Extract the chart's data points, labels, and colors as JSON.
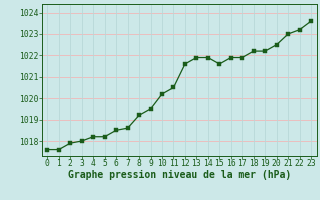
{
  "x": [
    0,
    1,
    2,
    3,
    4,
    5,
    6,
    7,
    8,
    9,
    10,
    11,
    12,
    13,
    14,
    15,
    16,
    17,
    18,
    19,
    20,
    21,
    22,
    23
  ],
  "y": [
    1017.6,
    1017.6,
    1017.9,
    1018.0,
    1018.2,
    1018.2,
    1018.5,
    1018.6,
    1019.2,
    1019.5,
    1020.2,
    1020.5,
    1021.6,
    1021.9,
    1021.9,
    1021.6,
    1021.9,
    1021.9,
    1022.2,
    1022.2,
    1022.5,
    1023.0,
    1023.2,
    1023.6
  ],
  "ylim": [
    1017.3,
    1024.4
  ],
  "yticks": [
    1018,
    1019,
    1020,
    1021,
    1022,
    1023,
    1024
  ],
  "xticks": [
    0,
    1,
    2,
    3,
    4,
    5,
    6,
    7,
    8,
    9,
    10,
    11,
    12,
    13,
    14,
    15,
    16,
    17,
    18,
    19,
    20,
    21,
    22,
    23
  ],
  "xlabel": "Graphe pression niveau de la mer (hPa)",
  "line_color": "#1a5c1a",
  "marker_color": "#1a5c1a",
  "bg_color": "#cce8e8",
  "grid_color_h": "#f0b8b8",
  "grid_color_v": "#b8d8d8",
  "xlabel_color": "#1a5c1a",
  "tick_color": "#1a5c1a",
  "axis_label_fontsize": 7.0,
  "tick_fontsize": 5.8
}
